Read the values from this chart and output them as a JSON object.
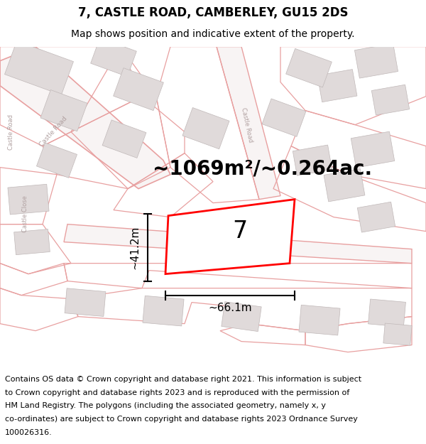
{
  "title": "7, CASTLE ROAD, CAMBERLEY, GU15 2DS",
  "subtitle": "Map shows position and indicative extent of the property.",
  "area_text": "~1069m²/~0.264ac.",
  "property_number": "7",
  "dim_width": "~66.1m",
  "dim_height": "~41.2m",
  "footer_lines": [
    "Contains OS data © Crown copyright and database right 2021. This information is subject",
    "to Crown copyright and database rights 2023 and is reproduced with the permission of",
    "HM Land Registry. The polygons (including the associated geometry, namely x, y",
    "co-ordinates) are subject to Crown copyright and database rights 2023 Ordnance Survey",
    "100026316."
  ],
  "road_line_color": "#e8a0a0",
  "road_line_color2": "#d08080",
  "building_face": "#e0dada",
  "building_edge": "#c0b8b8",
  "plot_color": "#ff0000",
  "bg_color": "#ffffff",
  "label_color": "#b0a0a0",
  "title_fontsize": 12,
  "subtitle_fontsize": 10,
  "area_fontsize": 20,
  "number_fontsize": 24,
  "dim_fontsize": 11,
  "footer_fontsize": 8.0
}
